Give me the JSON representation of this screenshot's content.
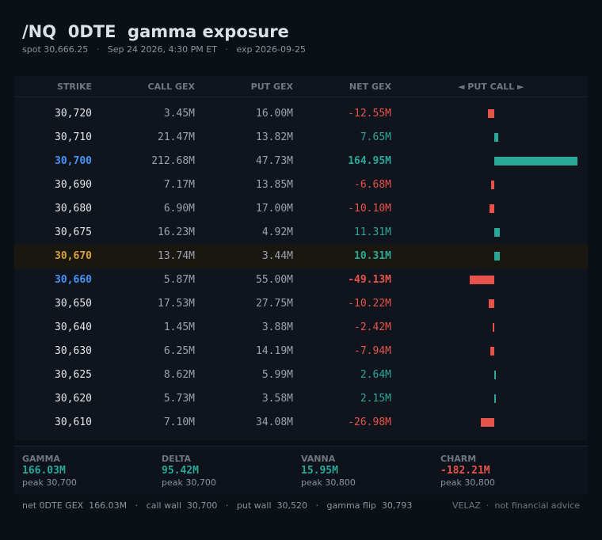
{
  "title": "/NQ  0DTE  gamma exposure",
  "subtitle": {
    "spot": "spot 30,666.25",
    "time": "Sep 24 2026, 4:30 PM ET",
    "exp": "exp 2026-09-25",
    "sep": "·"
  },
  "table": {
    "headers": {
      "strike": "STRIKE",
      "call": "CALL GEX",
      "put": "PUT GEX",
      "net": "NET GEX",
      "bar": "◄ PUT   CALL ►"
    },
    "rows": [
      {
        "strike": "30,720",
        "call": "3.45M",
        "put": "16.00M",
        "net": "-12.55M",
        "net_value": -12.55
      },
      {
        "strike": "30,710",
        "call": "21.47M",
        "put": "13.82M",
        "net": "7.65M",
        "net_value": 7.65
      },
      {
        "strike": "30,700",
        "call": "212.68M",
        "put": "47.73M",
        "net": "164.95M",
        "net_value": 164.95
      },
      {
        "strike": "30,690",
        "call": "7.17M",
        "put": "13.85M",
        "net": "-6.68M",
        "net_value": -6.68
      },
      {
        "strike": "30,680",
        "call": "6.90M",
        "put": "17.00M",
        "net": "-10.10M",
        "net_value": -10.1
      },
      {
        "strike": "30,675",
        "call": "16.23M",
        "put": "4.92M",
        "net": "11.31M",
        "net_value": 11.31
      },
      {
        "strike": "30,670",
        "call": "13.74M",
        "put": "3.44M",
        "net": "10.31M",
        "net_value": 10.31
      },
      {
        "strike": "30,660",
        "call": "5.87M",
        "put": "55.00M",
        "net": "-49.13M",
        "net_value": -49.13
      },
      {
        "strike": "30,650",
        "call": "17.53M",
        "put": "27.75M",
        "net": "-10.22M",
        "net_value": -10.22
      },
      {
        "strike": "30,640",
        "call": "1.45M",
        "put": "3.88M",
        "net": "-2.42M",
        "net_value": -2.42
      },
      {
        "strike": "30,630",
        "call": "6.25M",
        "put": "14.19M",
        "net": "-7.94M",
        "net_value": -7.94
      },
      {
        "strike": "30,625",
        "call": "8.62M",
        "put": "5.99M",
        "net": "2.64M",
        "net_value": 2.64
      },
      {
        "strike": "30,620",
        "call": "5.73M",
        "put": "3.58M",
        "net": "2.15M",
        "net_value": 2.15
      },
      {
        "strike": "30,610",
        "call": "7.10M",
        "put": "34.08M",
        "net": "-26.98M",
        "net_value": -26.98
      }
    ]
  },
  "stats": [
    {
      "label": "GAMMA",
      "value": "166.03M",
      "peak": "peak 30,700",
      "sign": "pos"
    },
    {
      "label": "DELTA",
      "value": "95.42M",
      "peak": "peak 30,700",
      "sign": "pos"
    },
    {
      "label": "VANNA",
      "value": "15.95M",
      "peak": "peak 30,800",
      "sign": "pos"
    },
    {
      "label": "CHARM",
      "value": "-182.21M",
      "peak": "peak 30,800",
      "sign": "neg"
    }
  ],
  "footer": {
    "net": "net 0DTE GEX  166.03M",
    "call_wall": "call wall  30,700",
    "put_wall": "put wall  30,520",
    "flip": "gamma flip  30,793",
    "sep": "·",
    "brand": "VELAZ  ·  not financial advice"
  },
  "colors": {
    "positive": "#2ba79a",
    "negative": "#e5534b",
    "pin_strike": "#4493f8",
    "spot_strike": "#d9a13b"
  }
}
